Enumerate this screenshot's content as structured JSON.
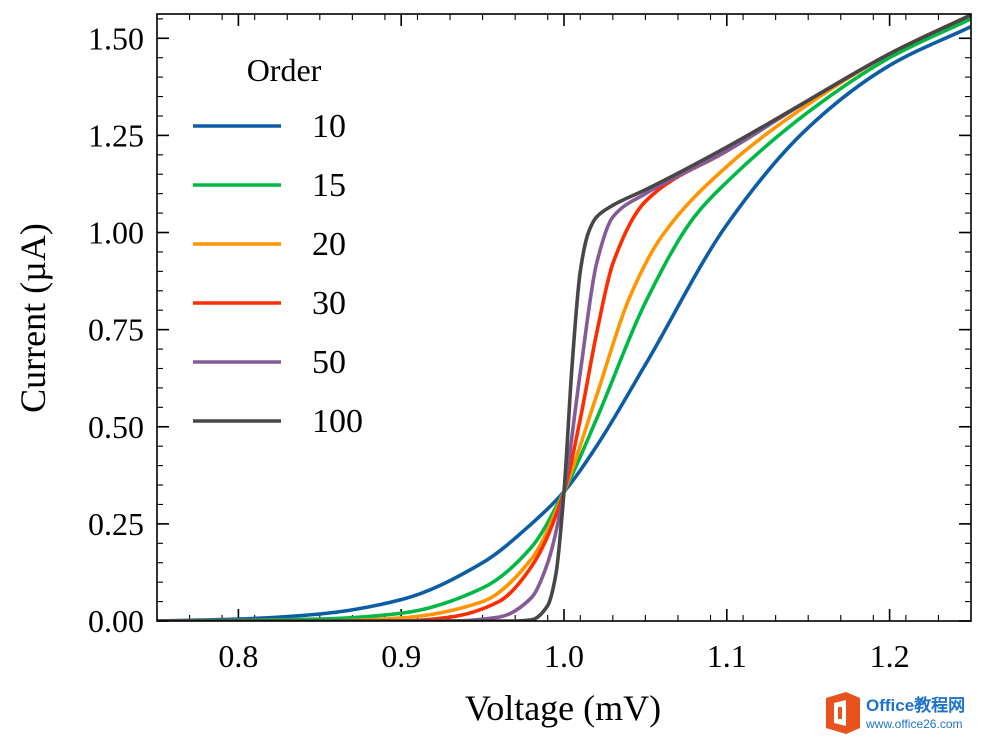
{
  "chart_data": {
    "type": "line",
    "xlabel": "Voltage (mV)",
    "ylabel": "Current (µA)",
    "xlim": [
      0.75,
      1.25
    ],
    "ylim": [
      0.0,
      1.5625
    ],
    "xticks": [
      0.8,
      0.9,
      1.0,
      1.1,
      1.2
    ],
    "xtick_labels": [
      "0.8",
      "0.9",
      "1.0",
      "1.1",
      "1.2"
    ],
    "yticks": [
      0.0,
      0.25,
      0.5,
      0.75,
      1.0,
      1.25,
      1.5
    ],
    "ytick_labels": [
      "0.00",
      "0.25",
      "0.50",
      "0.75",
      "1.00",
      "1.25",
      "1.50"
    ],
    "x_minor_step": 0.02,
    "y_minor_step": 0.05,
    "legend_title": "Order",
    "legend_position": "top-left",
    "grid": false,
    "series": [
      {
        "name": "10",
        "color": "#0C5DA5",
        "x": [
          0.75,
          0.8,
          0.85,
          0.9,
          0.95,
          0.98,
          1.0,
          1.02,
          1.05,
          1.1,
          1.15,
          1.2,
          1.25
        ],
        "y": [
          0.0,
          0.005,
          0.018,
          0.055,
          0.15,
          0.25,
          0.333,
          0.45,
          0.66,
          1.02,
          1.27,
          1.43,
          1.53
        ]
      },
      {
        "name": "15",
        "color": "#00B945",
        "x": [
          0.75,
          0.85,
          0.9,
          0.95,
          0.98,
          1.0,
          1.02,
          1.05,
          1.08,
          1.1,
          1.15,
          1.2,
          1.25
        ],
        "y": [
          0.0,
          0.005,
          0.02,
          0.085,
          0.19,
          0.333,
          0.52,
          0.82,
          1.04,
          1.13,
          1.31,
          1.45,
          1.55
        ]
      },
      {
        "name": "20",
        "color": "#FF9500",
        "x": [
          0.75,
          0.85,
          0.9,
          0.95,
          0.98,
          1.0,
          1.02,
          1.04,
          1.06,
          1.1,
          1.15,
          1.2,
          1.25
        ],
        "y": [
          0.0,
          0.0,
          0.008,
          0.05,
          0.16,
          0.333,
          0.58,
          0.83,
          0.99,
          1.17,
          1.33,
          1.46,
          1.56
        ]
      },
      {
        "name": "30",
        "color": "#FF2C00",
        "x": [
          0.75,
          0.9,
          0.93,
          0.96,
          0.98,
          1.0,
          1.01,
          1.02,
          1.03,
          1.05,
          1.1,
          1.15,
          1.2,
          1.25
        ],
        "y": [
          0.0,
          0.0,
          0.01,
          0.05,
          0.14,
          0.333,
          0.52,
          0.74,
          0.92,
          1.08,
          1.21,
          1.34,
          1.46,
          1.56
        ]
      },
      {
        "name": "50",
        "color": "#845B97",
        "x": [
          0.75,
          0.93,
          0.96,
          0.98,
          0.99,
          1.0,
          1.01,
          1.02,
          1.03,
          1.05,
          1.1,
          1.15,
          1.2,
          1.25
        ],
        "y": [
          0.0,
          0.0,
          0.01,
          0.06,
          0.15,
          0.333,
          0.64,
          0.92,
          1.04,
          1.1,
          1.21,
          1.34,
          1.46,
          1.56
        ]
      },
      {
        "name": "100",
        "color": "#474747",
        "x": [
          0.75,
          0.97,
          0.98,
          0.99,
          0.995,
          1.0,
          1.005,
          1.01,
          1.015,
          1.02,
          1.03,
          1.05,
          1.1,
          1.15,
          1.2,
          1.25
        ],
        "y": [
          0.0,
          0.0,
          0.003,
          0.04,
          0.12,
          0.333,
          0.66,
          0.9,
          1.0,
          1.04,
          1.07,
          1.11,
          1.22,
          1.34,
          1.46,
          1.56
        ]
      }
    ]
  },
  "watermark": {
    "line1": "Office教程网",
    "line2": "www.office26.com",
    "logo_color": "#E8531D"
  }
}
